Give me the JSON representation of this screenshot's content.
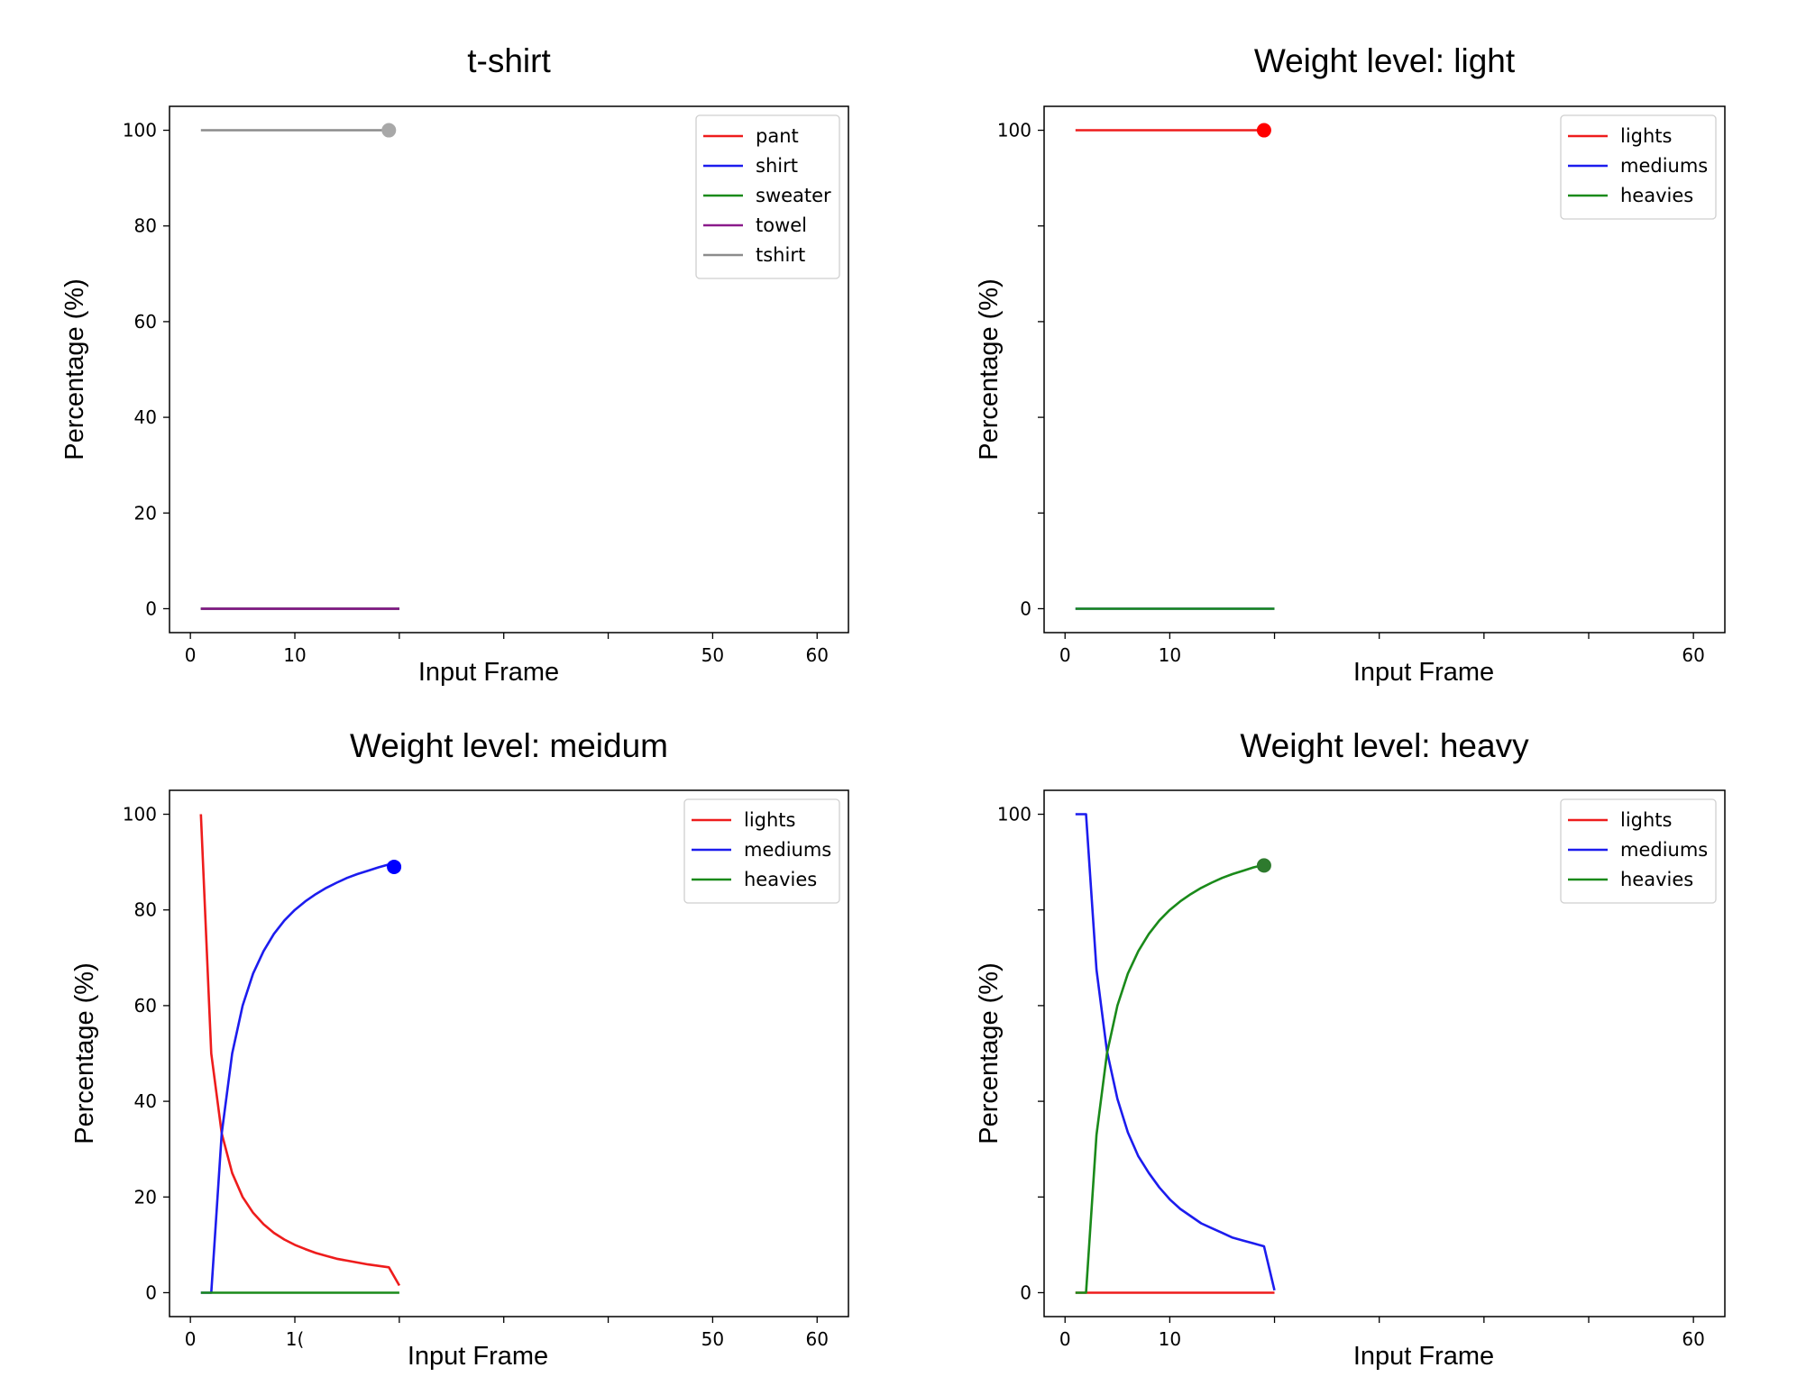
{
  "chart_data": [
    {
      "type": "line",
      "title": "t-shirt",
      "xlabel": "Input Frame",
      "ylabel": "Percentage (%)",
      "xlim": [
        -2,
        63
      ],
      "ylim": [
        -5,
        105
      ],
      "xticks": [
        "0",
        "10",
        "",
        "",
        "",
        "50",
        "60"
      ],
      "xtick_values": [
        0,
        10,
        20,
        30,
        40,
        50,
        60
      ],
      "yticks": [
        "0",
        "20",
        "40",
        "60",
        "80",
        "100"
      ],
      "ytick_values": [
        0,
        20,
        40,
        60,
        80,
        100
      ],
      "legend_position": "top-right",
      "series": [
        {
          "name": "pant",
          "color": "#ee1c1c",
          "x": [
            1,
            20
          ],
          "y": [
            0,
            0
          ]
        },
        {
          "name": "shirt",
          "color": "#1c1cee",
          "x": [
            1,
            20
          ],
          "y": [
            0,
            0
          ]
        },
        {
          "name": "sweater",
          "color": "#1a8a1a",
          "x": [
            1,
            20
          ],
          "y": [
            0,
            0
          ]
        },
        {
          "name": "towel",
          "color": "#8a1a8a",
          "x": [
            1,
            20
          ],
          "y": [
            0,
            0
          ]
        },
        {
          "name": "tshirt",
          "color": "#8c8c8c",
          "x": [
            1,
            19
          ],
          "y": [
            100,
            100
          ]
        }
      ],
      "marker": {
        "x": 19,
        "y": 100,
        "color": "#a8a8a8"
      }
    },
    {
      "type": "line",
      "title": "Weight level: light",
      "xlabel": "Input Frame",
      "ylabel": "Percentage (%)",
      "xlim": [
        -2,
        63
      ],
      "ylim": [
        -5,
        105
      ],
      "xticks": [
        "0",
        "10",
        "",
        "",
        "",
        "",
        "60"
      ],
      "xtick_values": [
        0,
        10,
        20,
        30,
        40,
        50,
        60
      ],
      "yticks": [
        "0",
        "",
        "",
        "",
        "",
        "100"
      ],
      "ytick_values": [
        0,
        20,
        40,
        60,
        80,
        100
      ],
      "legend_position": "top-right",
      "series": [
        {
          "name": "lights",
          "color": "#ee1c1c",
          "x": [
            1,
            19
          ],
          "y": [
            100,
            100
          ]
        },
        {
          "name": "mediums",
          "color": "#1c1cee",
          "x": [
            1,
            20
          ],
          "y": [
            0,
            0
          ]
        },
        {
          "name": "heavies",
          "color": "#1a8a1a",
          "x": [
            1,
            20
          ],
          "y": [
            0,
            0
          ]
        }
      ],
      "marker": {
        "x": 19,
        "y": 100,
        "color": "#ff0000"
      }
    },
    {
      "type": "line",
      "title": "Weight level: meidum",
      "xlabel": "Input Frame",
      "ylabel": "Percentage (%)",
      "xlim": [
        -2,
        63
      ],
      "ylim": [
        -5,
        105
      ],
      "xticks": [
        "0",
        "1(",
        "",
        "",
        "",
        "50",
        "60"
      ],
      "xtick_values": [
        0,
        10,
        20,
        30,
        40,
        50,
        60
      ],
      "yticks": [
        "0",
        "20",
        "40",
        "60",
        "80",
        "100"
      ],
      "ytick_values": [
        0,
        20,
        40,
        60,
        80,
        100
      ],
      "legend_position": "top-right",
      "series": [
        {
          "name": "lights",
          "color": "#ee1c1c",
          "x": [
            1,
            2,
            3,
            4,
            5,
            6,
            7,
            8,
            9,
            10,
            11,
            12,
            13,
            14,
            15,
            16,
            17,
            18,
            19,
            20
          ],
          "y": [
            100,
            50,
            33.3,
            25,
            20,
            16.7,
            14.3,
            12.5,
            11.1,
            10,
            9.1,
            8.3,
            7.7,
            7.1,
            6.7,
            6.3,
            5.9,
            5.6,
            5.3,
            1.5
          ]
        },
        {
          "name": "mediums",
          "color": "#1c1cee",
          "x": [
            1,
            2,
            3,
            4,
            5,
            6,
            7,
            8,
            9,
            10,
            11,
            12,
            13,
            14,
            15,
            16,
            17,
            18,
            19,
            20
          ],
          "y": [
            0,
            0,
            33.3,
            50,
            60,
            66.7,
            71.4,
            75,
            77.8,
            80,
            81.8,
            83.3,
            84.6,
            85.7,
            86.7,
            87.5,
            88.2,
            88.9,
            89.5,
            89.5
          ]
        },
        {
          "name": "heavies",
          "color": "#1a8a1a",
          "x": [
            1,
            20
          ],
          "y": [
            0,
            0
          ]
        }
      ],
      "marker": {
        "x": 19.5,
        "y": 89,
        "color": "#0000ff"
      }
    },
    {
      "type": "line",
      "title": "Weight level: heavy",
      "xlabel": "Input Frame",
      "ylabel": "Percentage (%)",
      "xlim": [
        -2,
        63
      ],
      "ylim": [
        -5,
        105
      ],
      "xticks": [
        "0",
        "10",
        "",
        "",
        "",
        "",
        "60"
      ],
      "xtick_values": [
        0,
        10,
        20,
        30,
        40,
        50,
        60
      ],
      "yticks": [
        "0",
        "",
        "",
        "",
        "",
        "100"
      ],
      "ytick_values": [
        0,
        20,
        40,
        60,
        80,
        100
      ],
      "legend_position": "top-right",
      "series": [
        {
          "name": "lights",
          "color": "#ee1c1c",
          "x": [
            1,
            20
          ],
          "y": [
            0,
            0
          ]
        },
        {
          "name": "mediums",
          "color": "#1c1cee",
          "x": [
            1,
            2,
            3,
            4,
            5,
            6,
            7,
            8,
            9,
            10,
            11,
            12,
            13,
            14,
            15,
            16,
            17,
            18,
            19,
            20
          ],
          "y": [
            100,
            100,
            67.5,
            50.5,
            40.5,
            33.5,
            28.5,
            25,
            22,
            19.5,
            17.5,
            16,
            14.5,
            13.5,
            12.5,
            11.5,
            10.9,
            10.3,
            9.7,
            0.5
          ]
        },
        {
          "name": "heavies",
          "color": "#1a8a1a",
          "x": [
            1,
            2,
            3,
            4,
            5,
            6,
            7,
            8,
            9,
            10,
            11,
            12,
            13,
            14,
            15,
            16,
            17,
            18,
            19
          ],
          "y": [
            0,
            0,
            33,
            50,
            60,
            66.7,
            71.4,
            75,
            77.8,
            80,
            81.8,
            83.3,
            84.6,
            85.7,
            86.7,
            87.5,
            88.2,
            88.9,
            89.4
          ]
        }
      ],
      "marker": {
        "x": 19,
        "y": 89.3,
        "color": "#2e7a2e"
      }
    }
  ]
}
